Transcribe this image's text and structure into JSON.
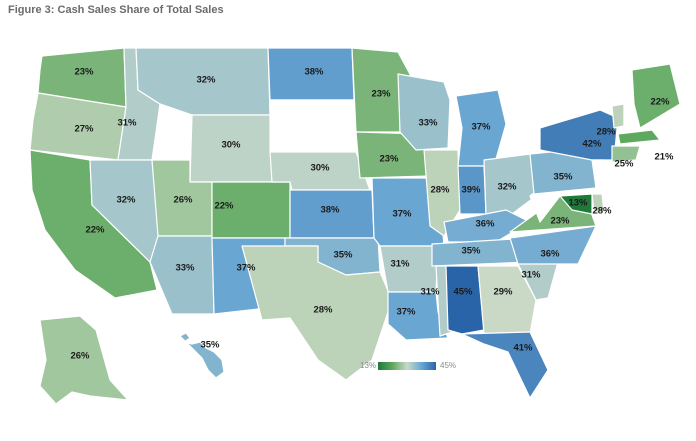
{
  "title": "Figure 3: Cash Sales Share of Total Sales",
  "legend": {
    "min_label": "13%",
    "max_label": "45%",
    "colors": [
      "#1f7a3a",
      "#5fa85f",
      "#c9d9c6",
      "#6aa6d2",
      "#2a64a8"
    ]
  },
  "map_data": {
    "metric": "cash sales share of total sales",
    "states": [
      {
        "id": "WA",
        "value": "23%"
      },
      {
        "id": "OR",
        "value": "27%"
      },
      {
        "id": "CA",
        "value": "22%"
      },
      {
        "id": "ID",
        "value": "31%"
      },
      {
        "id": "NV",
        "value": "32%"
      },
      {
        "id": "MT",
        "value": "32%"
      },
      {
        "id": "WY",
        "value": "30%"
      },
      {
        "id": "UT",
        "value": "26%"
      },
      {
        "id": "AZ",
        "value": "33%"
      },
      {
        "id": "CO",
        "value": "22%"
      },
      {
        "id": "NM",
        "value": "37%"
      },
      {
        "id": "ND",
        "value": "38%"
      },
      {
        "id": "SD",
        "value": ""
      },
      {
        "id": "NE",
        "value": "30%"
      },
      {
        "id": "KS",
        "value": "38%"
      },
      {
        "id": "OK",
        "value": "35%"
      },
      {
        "id": "TX",
        "value": "28%"
      },
      {
        "id": "MN",
        "value": "23%"
      },
      {
        "id": "IA",
        "value": "23%"
      },
      {
        "id": "MO",
        "value": "37%"
      },
      {
        "id": "AR",
        "value": "31%"
      },
      {
        "id": "LA",
        "value": "37%"
      },
      {
        "id": "WI",
        "value": "33%"
      },
      {
        "id": "IL",
        "value": "28%"
      },
      {
        "id": "MI",
        "value": "37%"
      },
      {
        "id": "IN",
        "value": "39%"
      },
      {
        "id": "OH",
        "value": "32%"
      },
      {
        "id": "KY",
        "value": "36%"
      },
      {
        "id": "TN",
        "value": "35%"
      },
      {
        "id": "MS",
        "value": "31%"
      },
      {
        "id": "AL",
        "value": "45%"
      },
      {
        "id": "GA",
        "value": "29%"
      },
      {
        "id": "FL",
        "value": "41%"
      },
      {
        "id": "SC",
        "value": "31%"
      },
      {
        "id": "NC",
        "value": "36%"
      },
      {
        "id": "VA",
        "value": "23%"
      },
      {
        "id": "WV",
        "value": ""
      },
      {
        "id": "PA",
        "value": "35%"
      },
      {
        "id": "NY",
        "value": "42%"
      },
      {
        "id": "VT",
        "value": "28%"
      },
      {
        "id": "NH",
        "value": ""
      },
      {
        "id": "ME",
        "value": "22%"
      },
      {
        "id": "MA",
        "value": "21%"
      },
      {
        "id": "CT",
        "value": "25%"
      },
      {
        "id": "NJ",
        "value": ""
      },
      {
        "id": "MD",
        "value": "13%"
      },
      {
        "id": "DE",
        "value": "28%"
      },
      {
        "id": "AK",
        "value": "26%"
      },
      {
        "id": "HI",
        "value": "35%"
      }
    ]
  }
}
